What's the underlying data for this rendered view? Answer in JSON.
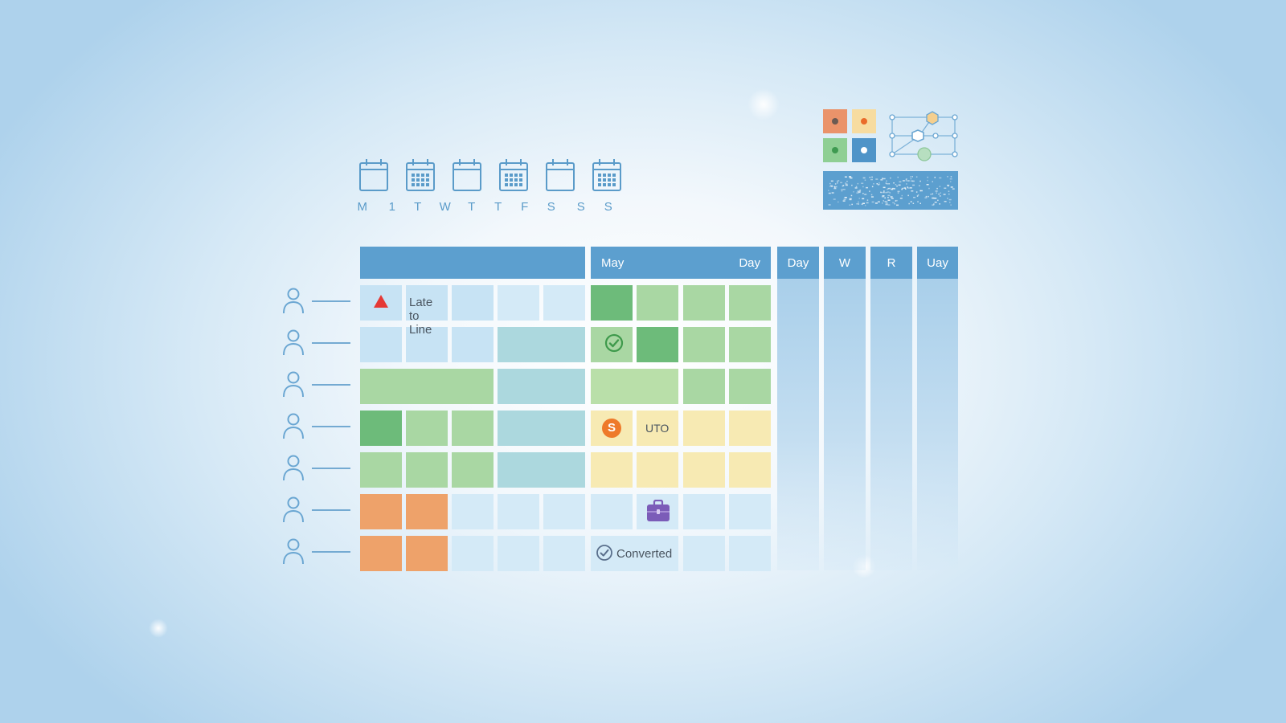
{
  "colors": {
    "header": "#5c9fcf",
    "accent_blue": "#5a9bc9",
    "alert_red": "#e53935",
    "check_green": "#3f9a4c",
    "coin_orange": "#ee7a2a",
    "briefcase_purple": "#7b5cb8"
  },
  "calendar_strip": {
    "icons": [
      "calendar-icon",
      "calendar-grid-icon",
      "calendar-icon",
      "calendar-grid-icon",
      "calendar-icon",
      "calendar-grid-icon"
    ],
    "day_letters": [
      "M",
      "1",
      "T",
      "W",
      "T",
      "T",
      "F",
      "S",
      "S",
      "S"
    ]
  },
  "widget": {
    "swatches": [
      "#ea936a",
      "#f7dca0",
      "#8fcf94",
      "#4f94c8"
    ],
    "swatch_dots": [
      "#6b5a52",
      "#ea6b2a",
      "#3e9a50",
      "#ffffff"
    ]
  },
  "grid": {
    "header": {
      "month_label": "May",
      "day_label": "Day",
      "extra_columns": [
        "Day",
        "W",
        "R",
        "Uay"
      ]
    },
    "rows": [
      {
        "icon": "person-icon"
      },
      {
        "icon": "person-icon"
      },
      {
        "icon": "person-icon"
      },
      {
        "icon": "person-icon"
      },
      {
        "icon": "person-icon"
      },
      {
        "icon": "person-icon"
      },
      {
        "icon": "person-icon"
      }
    ],
    "labels": {
      "late": "Late to Line",
      "uto": "UTO",
      "converted": "Converted"
    },
    "icons": {
      "late": "warning-triangle-icon",
      "check": "check-circle-icon",
      "coin": "dollar-coin-icon",
      "coin_symbol": "S",
      "briefcase": "briefcase-icon",
      "converted": "check-circle-outline-icon"
    }
  }
}
